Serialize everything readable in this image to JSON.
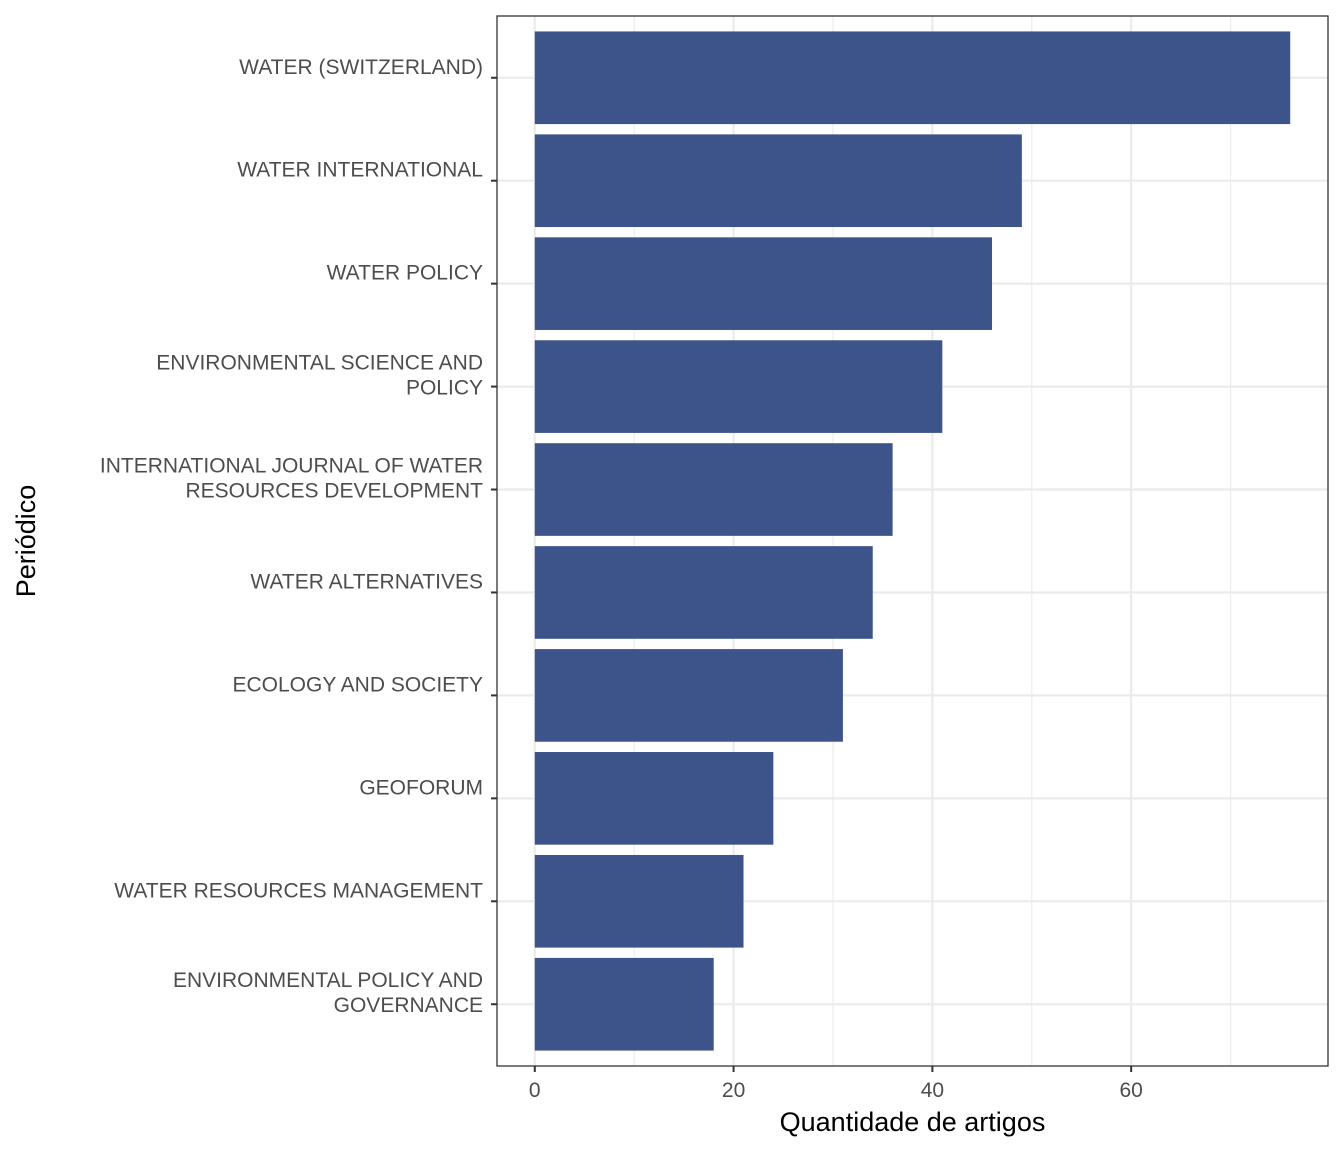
{
  "chart_data": {
    "type": "bar",
    "orientation": "horizontal",
    "title": "",
    "xlabel": "Quantidade de artigos",
    "ylabel": "Periódico",
    "categories": [
      [
        "WATER (SWITZERLAND)"
      ],
      [
        "WATER INTERNATIONAL"
      ],
      [
        "WATER POLICY"
      ],
      [
        "ENVIRONMENTAL SCIENCE AND",
        "POLICY"
      ],
      [
        "INTERNATIONAL JOURNAL OF WATER",
        "RESOURCES DEVELOPMENT"
      ],
      [
        "WATER ALTERNATIVES"
      ],
      [
        "ECOLOGY AND SOCIETY"
      ],
      [
        "GEOFORUM"
      ],
      [
        "WATER RESOURCES MANAGEMENT"
      ],
      [
        "ENVIRONMENTAL POLICY AND",
        "GOVERNANCE"
      ]
    ],
    "values": [
      76,
      49,
      46,
      41,
      36,
      34,
      31,
      24,
      21,
      18
    ],
    "xlim": [
      -3.8,
      79.8
    ],
    "x_ticks": [
      0,
      20,
      40,
      60
    ],
    "x_tick_labels": [
      "0",
      "20",
      "40",
      "60"
    ],
    "grid": true,
    "legend": "none",
    "bar_color": "#3c548a",
    "grid_color": "#ebebeb",
    "panel_border_color": "#333333"
  }
}
